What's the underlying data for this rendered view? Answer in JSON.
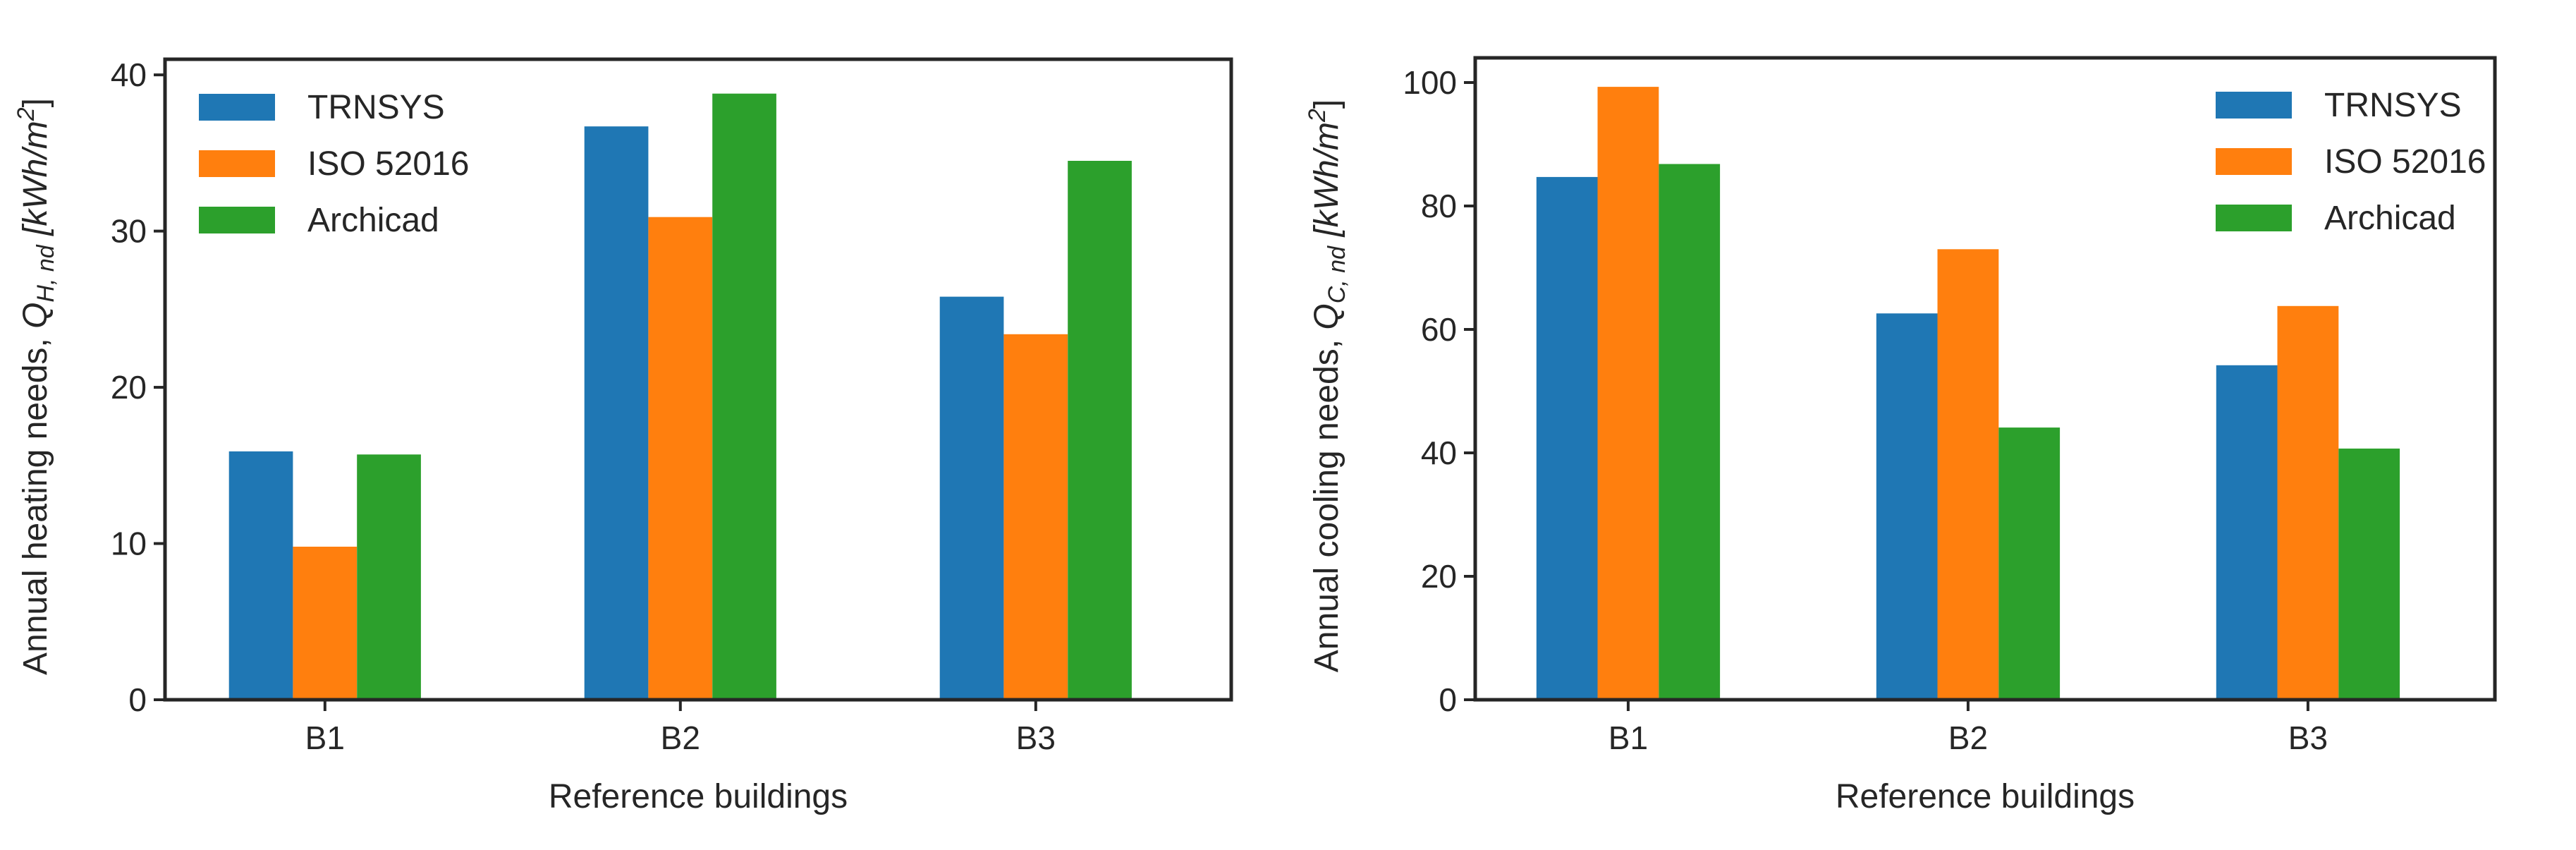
{
  "chart_data": [
    {
      "type": "bar",
      "categories": [
        "B1",
        "B2",
        "B3"
      ],
      "series": [
        {
          "name": "TRNSYS",
          "values": [
            15.9,
            36.7,
            25.8
          ]
        },
        {
          "name": "ISO 52016",
          "values": [
            9.8,
            30.9,
            23.4
          ]
        },
        {
          "name": "Archicad",
          "values": [
            15.7,
            38.8,
            34.5
          ]
        }
      ],
      "xlabel": "Reference buildings",
      "ylabel_text": "Annual heating needs, ",
      "ylabel_symbol": "Q",
      "ylabel_sub": "H, nd",
      "ylabel_unit": "[kWh/m",
      "ylabel_sup": "2",
      "ylabel_close": "]",
      "ylim": [
        0,
        41
      ],
      "yticks": [
        0,
        10,
        20,
        30,
        40
      ],
      "legend_position": "top-left"
    },
    {
      "type": "bar",
      "categories": [
        "B1",
        "B2",
        "B3"
      ],
      "series": [
        {
          "name": "TRNSYS",
          "values": [
            84.7,
            62.6,
            54.2
          ]
        },
        {
          "name": "ISO 52016",
          "values": [
            99.3,
            73.0,
            63.8
          ]
        },
        {
          "name": "Archicad",
          "values": [
            86.8,
            44.1,
            40.7
          ]
        }
      ],
      "xlabel": "Reference buildings",
      "ylabel_text": "Annual cooling needs, ",
      "ylabel_symbol": "Q",
      "ylabel_sub": "C, nd",
      "ylabel_unit": "[kWh/m",
      "ylabel_sup": "2",
      "ylabel_close": "]",
      "ylim": [
        0,
        104
      ],
      "yticks": [
        0,
        20,
        40,
        60,
        80,
        100
      ],
      "legend_position": "top-right"
    }
  ],
  "colors": {
    "TRNSYS": "#1f77b4",
    "ISO 52016": "#ff7f0e",
    "Archicad": "#2ca02c",
    "axis": "#262626"
  }
}
